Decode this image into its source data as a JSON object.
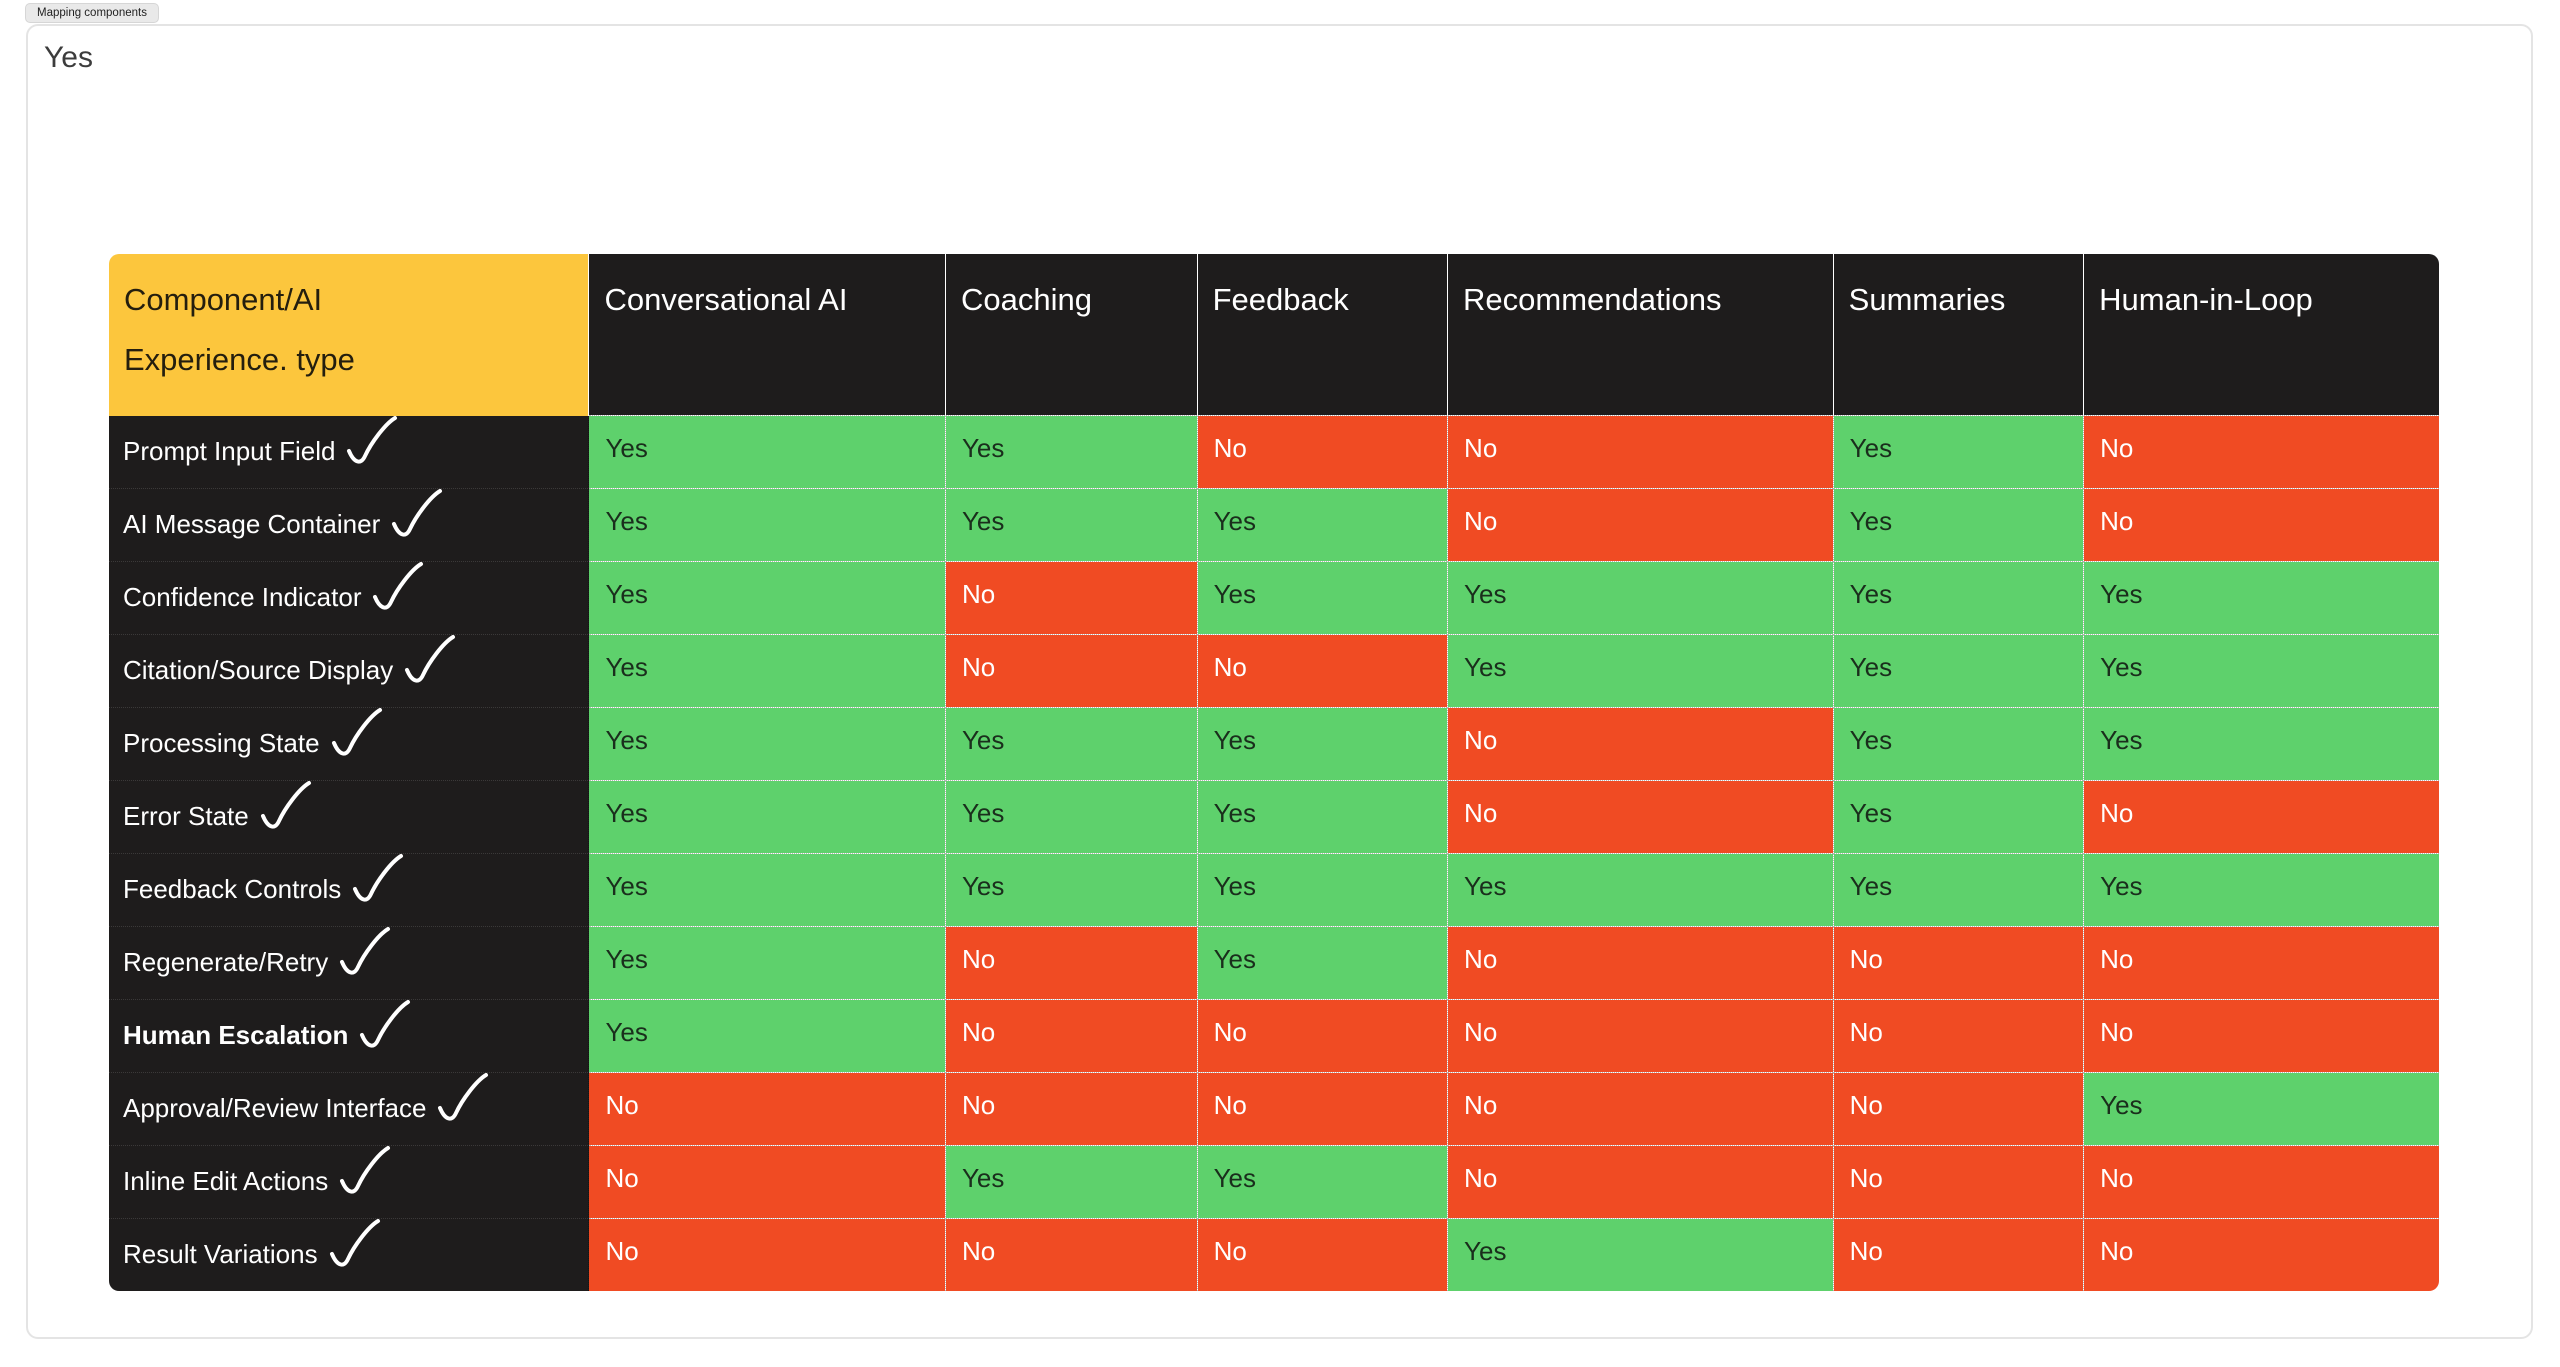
{
  "tab": {
    "label": "Mapping components"
  },
  "panel": {
    "top_text": "Yes"
  },
  "colors": {
    "yes_green": "#5ED16C",
    "no_red": "#F04B23",
    "header_yellow": "#FCC63D",
    "header_dark": "#1E1C1C"
  },
  "table": {
    "corner": {
      "line1": "Component/AI",
      "line2": "Experience. type"
    },
    "columns": [
      "Conversational AI",
      "Coaching",
      "Feedback",
      "Recommendations",
      "Summaries",
      "Human-in-Loop"
    ],
    "value_labels": {
      "yes": "Yes",
      "no": "No"
    },
    "rows": [
      {
        "label": "Prompt Input Field",
        "bold": false,
        "checked": true,
        "values": [
          "Yes",
          "Yes",
          "No",
          "No",
          "Yes",
          "No"
        ]
      },
      {
        "label": "AI Message Container",
        "bold": false,
        "checked": true,
        "values": [
          "Yes",
          "Yes",
          "Yes",
          "No",
          "Yes",
          "No"
        ]
      },
      {
        "label": "Confidence Indicator",
        "bold": false,
        "checked": true,
        "values": [
          "Yes",
          "No",
          "Yes",
          "Yes",
          "Yes",
          "Yes"
        ]
      },
      {
        "label": "Citation/Source Display",
        "bold": false,
        "checked": true,
        "values": [
          "Yes",
          "No",
          "No",
          "Yes",
          "Yes",
          "Yes"
        ]
      },
      {
        "label": "Processing State",
        "bold": false,
        "checked": true,
        "values": [
          "Yes",
          "Yes",
          "Yes",
          "No",
          "Yes",
          "Yes"
        ]
      },
      {
        "label": "Error State",
        "bold": false,
        "checked": true,
        "values": [
          "Yes",
          "Yes",
          "Yes",
          "No",
          "Yes",
          "No"
        ]
      },
      {
        "label": "Feedback Controls",
        "bold": false,
        "checked": true,
        "values": [
          "Yes",
          "Yes",
          "Yes",
          "Yes",
          "Yes",
          "Yes"
        ]
      },
      {
        "label": "Regenerate/Retry",
        "bold": false,
        "checked": true,
        "values": [
          "Yes",
          "No",
          "Yes",
          "No",
          "No",
          "No"
        ]
      },
      {
        "label": "Human Escalation",
        "bold": true,
        "checked": true,
        "values": [
          "Yes",
          "No",
          "No",
          "No",
          "No",
          "No"
        ]
      },
      {
        "label": "Approval/Review Interface",
        "bold": false,
        "checked": true,
        "values": [
          "No",
          "No",
          "No",
          "No",
          "No",
          "Yes"
        ]
      },
      {
        "label": "Inline Edit Actions",
        "bold": false,
        "checked": true,
        "values": [
          "No",
          "Yes",
          "Yes",
          "No",
          "No",
          "No"
        ]
      },
      {
        "label": "Result Variations",
        "bold": false,
        "checked": true,
        "values": [
          "No",
          "No",
          "No",
          "Yes",
          "No",
          "No"
        ]
      }
    ]
  }
}
